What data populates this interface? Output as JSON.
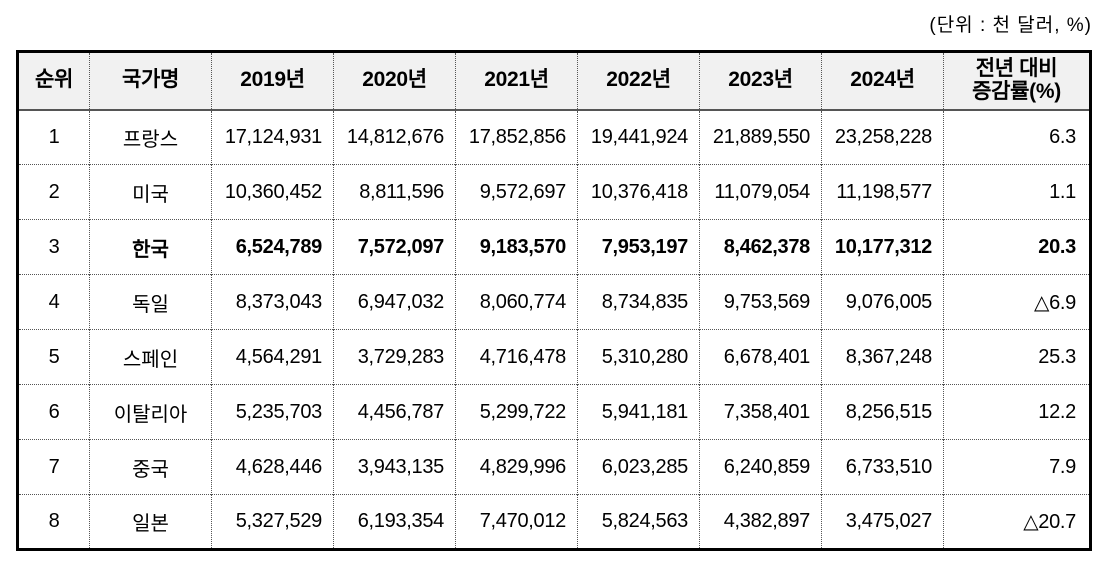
{
  "unit_label": "(단위 : 천 달러, %)",
  "table": {
    "headers": [
      "순위",
      "국가명",
      "2019년",
      "2020년",
      "2021년",
      "2022년",
      "2023년",
      "2024년"
    ],
    "last_header": {
      "line1": "전년 대비",
      "line2": "증감률(%)"
    },
    "rows": [
      {
        "rank": "1",
        "country": "프랑스",
        "values": [
          "17,124,931",
          "14,812,676",
          "17,852,856",
          "19,441,924",
          "21,889,550",
          "23,258,228"
        ],
        "change": "6.3"
      },
      {
        "rank": "2",
        "country": "미국",
        "values": [
          "10,360,452",
          "8,811,596",
          "9,572,697",
          "10,376,418",
          "11,079,054",
          "11,198,577"
        ],
        "change": "1.1"
      },
      {
        "rank": "3",
        "country": "한국",
        "values": [
          "6,524,789",
          "7,572,097",
          "9,183,570",
          "7,953,197",
          "8,462,378",
          "10,177,312"
        ],
        "change": "20.3"
      },
      {
        "rank": "4",
        "country": "독일",
        "values": [
          "8,373,043",
          "6,947,032",
          "8,060,774",
          "8,734,835",
          "9,753,569",
          "9,076,005"
        ],
        "change": "△6.9"
      },
      {
        "rank": "5",
        "country": "스페인",
        "values": [
          "4,564,291",
          "3,729,283",
          "4,716,478",
          "5,310,280",
          "6,678,401",
          "8,367,248"
        ],
        "change": "25.3"
      },
      {
        "rank": "6",
        "country": "이탈리아",
        "values": [
          "5,235,703",
          "4,456,787",
          "5,299,722",
          "5,941,181",
          "7,358,401",
          "8,256,515"
        ],
        "change": "12.2"
      },
      {
        "rank": "7",
        "country": "중국",
        "values": [
          "4,628,446",
          "3,943,135",
          "4,829,996",
          "6,023,285",
          "6,240,859",
          "6,733,510"
        ],
        "change": "7.9"
      },
      {
        "rank": "8",
        "country": "일본",
        "values": [
          "5,327,529",
          "6,193,354",
          "7,470,012",
          "5,824,563",
          "4,382,897",
          "3,475,027"
        ],
        "change": "△20.7"
      }
    ]
  },
  "colors": {
    "header_bg": "#f1f1f1",
    "outer_border": "#000000",
    "grid_dotted": "#555555",
    "text": "#000000"
  }
}
